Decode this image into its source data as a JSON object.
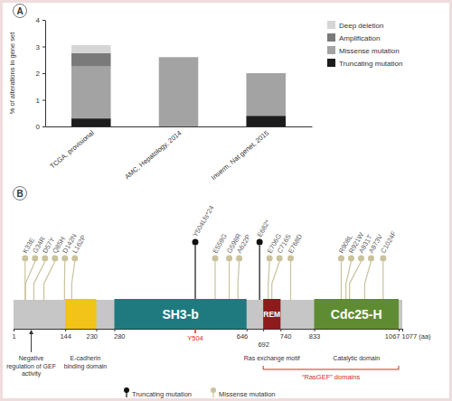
{
  "chart_data": [
    {
      "type": "bar",
      "title": "A",
      "ylabel": "% of alterations in gene set",
      "categories": [
        "TCGA, provisional",
        "AMC, Hepatology, 2014",
        "Inserm, Nat genet, 2015"
      ],
      "series": [
        {
          "name": "Truncating mutation",
          "color": "#1c1c1c",
          "values": [
            0.3,
            0,
            0.4
          ]
        },
        {
          "name": "Missense mutation",
          "color": "#a3a3a3",
          "values": [
            1.95,
            2.6,
            1.6
          ]
        },
        {
          "name": "Amplification",
          "color": "#7a7a7a",
          "values": [
            0.5,
            0,
            0
          ]
        },
        {
          "name": "Deep deletion",
          "color": "#d6d6d6",
          "values": [
            0.3,
            0,
            0
          ]
        }
      ],
      "stacked": true,
      "ylim": [
        0,
        4
      ],
      "yticks": [
        0,
        1,
        2,
        3,
        4
      ],
      "legend": "right"
    },
    {
      "type": "lollipop",
      "title": "B",
      "xlim": [
        1,
        1077
      ],
      "xticks": [
        1,
        144,
        230,
        280,
        646,
        692,
        740,
        833,
        1067,
        {
          "value": 1077,
          "label": "1077 (aa)"
        }
      ],
      "series": [
        {
          "name": "Truncating mutation",
          "color": "#111111",
          "x": [
            504,
            682
          ],
          "labels": [
            "Y504Lfs*24",
            "E682*"
          ]
        },
        {
          "name": "Missense mutation",
          "color": "#c9c29c",
          "x": [
            33,
            34,
            57,
            85,
            142,
            162,
            559,
            598,
            622,
            706,
            716,
            768,
            908,
            921,
            931,
            973,
            1024
          ],
          "labels": [
            "K33E",
            "G34R",
            "D57Y",
            "Q85H",
            "D142N",
            "L162P",
            "E559G",
            "G598R",
            "A622P",
            "E706G",
            "C716S",
            "E768D",
            "R908L",
            "R921W",
            "A931T",
            "A973V",
            "C1024F"
          ]
        }
      ],
      "domains": [
        {
          "start": 144,
          "end": 230,
          "color": "#f2c318"
        },
        {
          "label": "SH3-b",
          "start": 280,
          "end": 646,
          "color": "#1f7a80"
        },
        {
          "label": "REM",
          "start": 692,
          "end": 740,
          "color": "#8e1b1b"
        },
        {
          "label": "Cdc25-H",
          "start": 833,
          "end": 1067,
          "color": "#5f8c32"
        }
      ],
      "annotations": [
        {
          "text": [
            "Negative",
            "regulation of GEF",
            "activity"
          ],
          "position": 50,
          "marker": "arrow"
        },
        {
          "text": [
            "E-cadherin",
            "binding domain"
          ],
          "position": 200
        },
        {
          "text": "Y504",
          "position": 504,
          "color": "#d62a20",
          "marker": "tick"
        },
        {
          "text": "Ras exchange motif",
          "position": 716
        },
        {
          "text": "Catalytic domain",
          "position": 950
        },
        {
          "text": "“RasGEF” domains",
          "start": 692,
          "end": 1067,
          "color": "#d62a20"
        }
      ],
      "legend": "bottom"
    }
  ]
}
